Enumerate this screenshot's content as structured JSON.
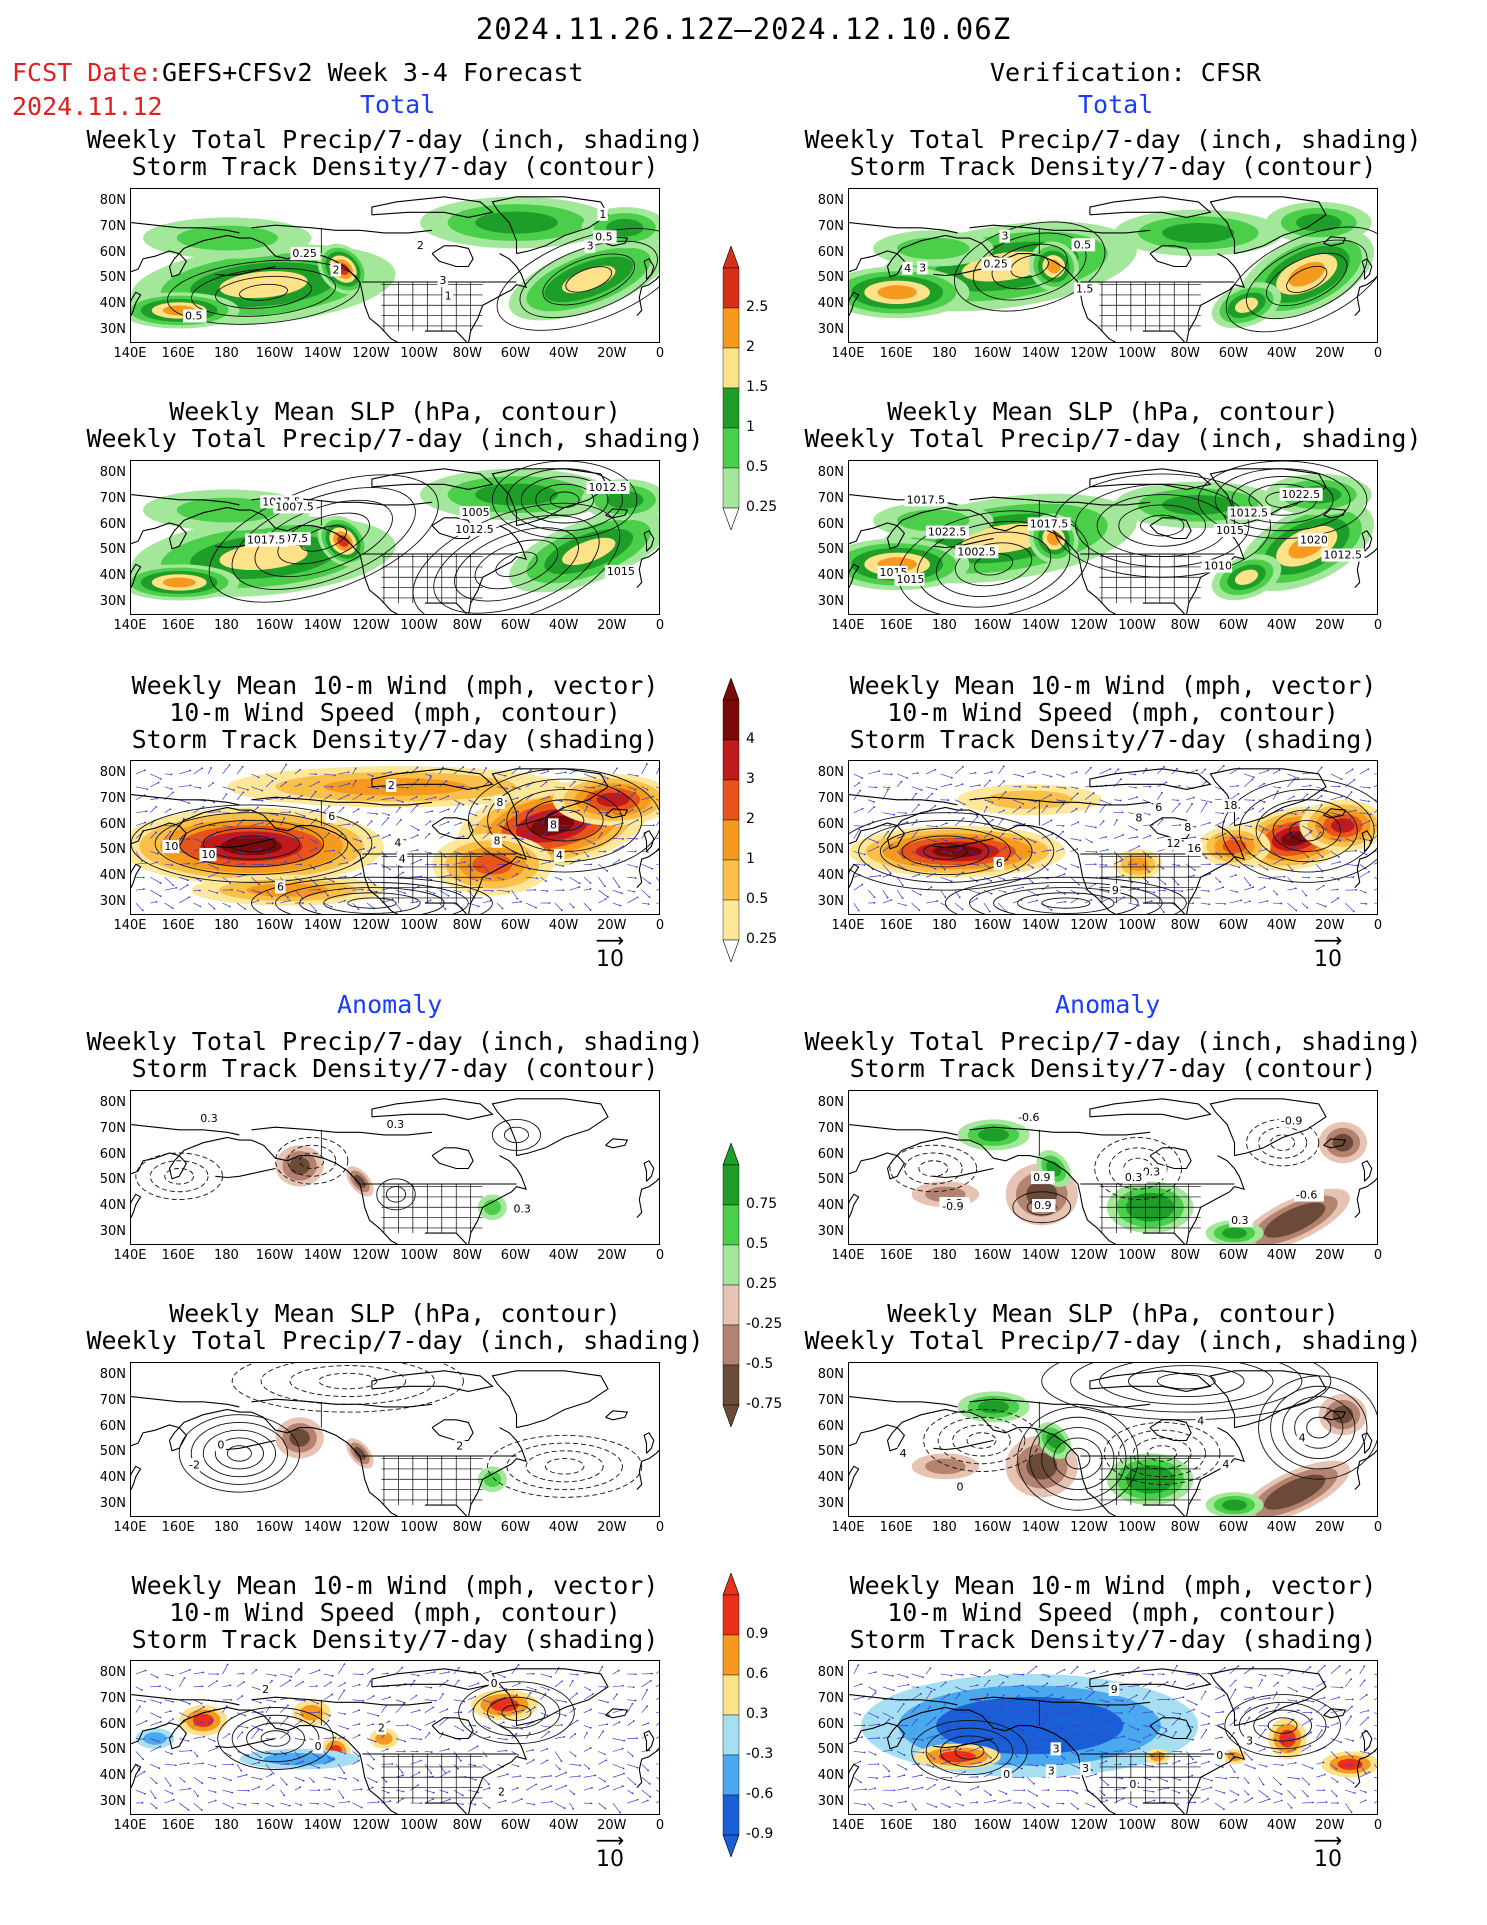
{
  "header": {
    "date_range": "2024.11.26.12Z–2024.12.10.06Z",
    "fcst_label": "FCST Date:",
    "fcst_date": "2024.11.12",
    "model_label": "GEFS+CFSv2 Week 3-4 Forecast",
    "verification_label": "Verification: CFSR"
  },
  "sections": {
    "total": "Total",
    "anomaly": "Anomaly"
  },
  "panel_titles": {
    "precip_storm": [
      "Weekly Total Precip/7-day (inch, shading)",
      "Storm Track Density/7-day (contour)"
    ],
    "slp_precip": [
      "Weekly Mean SLP (hPa, contour)",
      "Weekly Total Precip/7-day (inch, shading)"
    ],
    "wind_storm": [
      "Weekly Mean 10-m Wind (mph, vector)",
      "10-m Wind Speed (mph, contour)",
      "Storm Track Density/7-day (shading)"
    ]
  },
  "axes": {
    "lat_labels": [
      "80N",
      "70N",
      "60N",
      "50N",
      "40N",
      "30N"
    ],
    "lon_labels": [
      "140E",
      "160E",
      "180",
      "160W",
      "140W",
      "120W",
      "100W",
      "80W",
      "60W",
      "40W",
      "20W",
      "0"
    ]
  },
  "vector_ref": "10",
  "colorbars": {
    "total_precip": {
      "labels": [
        "2.5",
        "2",
        "1.5",
        "1",
        "0.5",
        "0.25"
      ],
      "colors": [
        "#d6301a",
        "#f59a1e",
        "#fde28a",
        "#1e9e28",
        "#4bcf4b",
        "#a3e89a"
      ]
    },
    "total_storm": {
      "labels": [
        "4",
        "3",
        "2",
        "1",
        "0.5",
        "0.25"
      ],
      "colors": [
        "#7a0a0a",
        "#c01a1a",
        "#e8541a",
        "#f59a1e",
        "#fbc04a",
        "#fde89a"
      ]
    },
    "anom_precip": {
      "labels": [
        "0.75",
        "0.5",
        "0.25",
        "-0.25",
        "-0.5",
        "-0.75"
      ],
      "colors": [
        "#1e9e28",
        "#4bcf4b",
        "#a3e89a",
        "#e6c3b3",
        "#b38370",
        "#6b4a3a"
      ]
    },
    "anom_storm": {
      "labels": [
        "0.9",
        "0.6",
        "0.3",
        "-0.3",
        "-0.6",
        "-0.9"
      ],
      "colors": [
        "#e8301a",
        "#f59a1e",
        "#fde28a",
        "#a6dff2",
        "#4aa8ee",
        "#1a5fd6"
      ]
    }
  },
  "contour_labels": {
    "p1l": [
      "3",
      "2",
      "1",
      "0.5",
      "3",
      "2",
      "1",
      "0.25",
      "0.5"
    ],
    "p1r": [
      "4",
      "0.5",
      "1.5",
      "0.25",
      "3",
      "3"
    ],
    "p2l": [
      "1017.5",
      "1012.5",
      "1007.5",
      "1005",
      "1007.5",
      "1012.5",
      "1015",
      "1017.5"
    ],
    "p2r": [
      "1017.5",
      "1015",
      "1017.5",
      "1020",
      "1022.5",
      "1002.5",
      "1015",
      "1012.5",
      "1010",
      "1022.5",
      "1012.5",
      "1015"
    ],
    "p3l": [
      "2",
      "4",
      "4",
      "6",
      "8",
      "8",
      "10",
      "10",
      "6",
      "8",
      "4"
    ],
    "p3r": [
      "6",
      "8",
      "16",
      "12",
      "9",
      "6",
      "18",
      "8"
    ],
    "p4l": [
      "0.3",
      "0.3",
      "0.3"
    ],
    "p4r": [
      "-0.9",
      "-0.3",
      "-0.6",
      "0.9",
      "-0.9",
      "0.9",
      "0.3",
      "-0.3",
      "-0.6",
      "0.3"
    ],
    "p5l": [
      "-2",
      "2",
      "0"
    ],
    "p5r": [
      "0",
      "4",
      "4",
      "4",
      "4"
    ],
    "p6l": [
      "0",
      "2",
      "2",
      "2",
      "0"
    ],
    "p6r": [
      "3",
      "0",
      "0",
      "0",
      "3",
      "9",
      "3",
      "3"
    ]
  }
}
